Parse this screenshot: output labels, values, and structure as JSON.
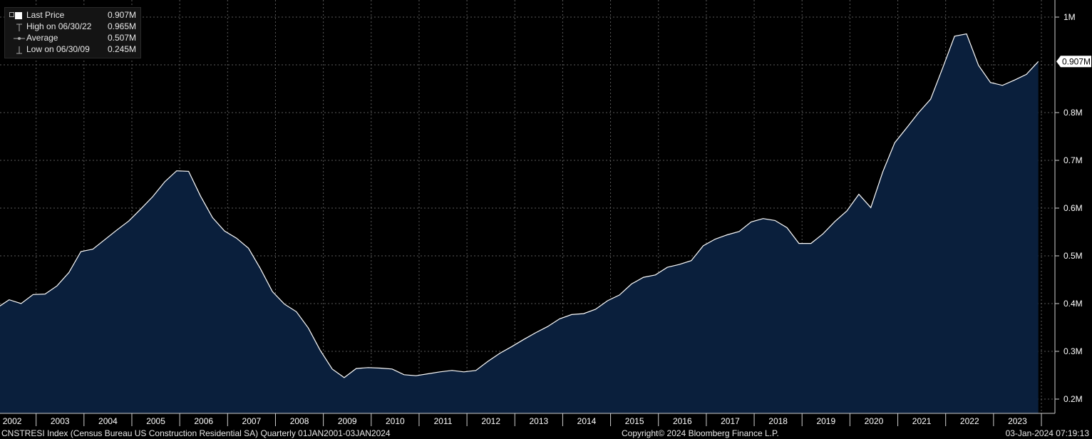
{
  "legend": {
    "items": [
      {
        "label": "Last Price",
        "value": "0.907M",
        "icon": "filled-square-icon"
      },
      {
        "label": "High on 06/30/22",
        "value": "0.965M",
        "icon": "high-marker-icon"
      },
      {
        "label": "Average",
        "value": "0.507M",
        "icon": "average-line-icon"
      },
      {
        "label": "Low on 06/30/09",
        "value": "0.245M",
        "icon": "low-marker-icon"
      }
    ]
  },
  "footer": {
    "left": "CNSTRESI Index (Census Bureau US Construction Residential SA)  Quarterly 01JAN2001-03JAN2024",
    "center": "Copyright© 2024 Bloomberg Finance L.P.",
    "right": "03-Jan-2024 07:19:13"
  },
  "colors": {
    "background": "#000000",
    "area_fill": "#0a1f3c",
    "line": "#ffffff",
    "grid": "#5a5a5a"
  },
  "chart_data": {
    "type": "area",
    "title": "",
    "xlabel": "",
    "ylabel": "",
    "ylim": [
      0.18,
      1.02
    ],
    "y_ticks": [
      0.2,
      0.3,
      0.4,
      0.5,
      0.6,
      0.7,
      0.8,
      1.0
    ],
    "y_tick_labels": [
      "0.2M",
      "0.3M",
      "0.4M",
      "0.5M",
      "0.6M",
      "0.7M",
      "0.8M",
      "1M"
    ],
    "last_value_label": "0.907M",
    "x_year_labels": [
      "2002",
      "2003",
      "2004",
      "2005",
      "2006",
      "2007",
      "2008",
      "2009",
      "2010",
      "2011",
      "2012",
      "2013",
      "2014",
      "2015",
      "2016",
      "2017",
      "2018",
      "2019",
      "2020",
      "2021",
      "2022",
      "2023"
    ],
    "grid": true,
    "legend_position": "top-left",
    "frequency": "quarterly",
    "start": "2001-Q4",
    "series": [
      {
        "values": [
          0.391,
          0.408,
          0.4,
          0.419,
          0.42,
          0.437,
          0.465,
          0.509,
          0.514,
          0.534,
          0.554,
          0.573,
          0.598,
          0.624,
          0.655,
          0.678,
          0.677,
          0.625,
          0.58,
          0.552,
          0.537,
          0.516,
          0.473,
          0.425,
          0.399,
          0.383,
          0.349,
          0.302,
          0.263,
          0.245,
          0.264,
          0.266,
          0.265,
          0.263,
          0.251,
          0.249,
          0.253,
          0.257,
          0.26,
          0.257,
          0.26,
          0.279,
          0.296,
          0.31,
          0.325,
          0.339,
          0.352,
          0.368,
          0.377,
          0.379,
          0.388,
          0.406,
          0.418,
          0.441,
          0.455,
          0.46,
          0.476,
          0.482,
          0.49,
          0.521,
          0.535,
          0.544,
          0.551,
          0.571,
          0.578,
          0.574,
          0.559,
          0.526,
          0.526,
          0.546,
          0.572,
          0.594,
          0.629,
          0.601,
          0.676,
          0.737,
          0.768,
          0.8,
          0.828,
          0.893,
          0.96,
          0.965,
          0.899,
          0.863,
          0.857,
          0.868,
          0.88,
          0.907
        ]
      }
    ]
  }
}
